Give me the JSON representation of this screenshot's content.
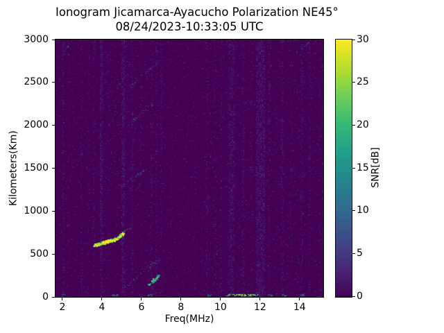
{
  "chart_data": {
    "type": "heatmap",
    "title": "Ionogram Jicamarca-Ayacucho Polarization NE45°",
    "subtitle": "08/24/2023-10:33:05 UTC",
    "xlabel": "Freq(MHz)",
    "ylabel": "Kilometers(Km)",
    "xlim": [
      1.65,
      15.2
    ],
    "ylim": [
      0,
      3000
    ],
    "x_ticks": [
      2,
      4,
      6,
      8,
      10,
      12,
      14
    ],
    "y_ticks": [
      0,
      500,
      1000,
      1500,
      2000,
      2500,
      3000
    ],
    "seed": 42,
    "background_snr": 0,
    "colorbar": {
      "label": "SNR[dB]",
      "min": 0,
      "max": 30,
      "ticks": [
        0,
        5,
        10,
        15,
        20,
        25,
        30
      ],
      "colormap": "viridis",
      "stops": [
        "#440154",
        "#482878",
        "#3e4989",
        "#31688e",
        "#26828e",
        "#1f9e89",
        "#35b779",
        "#6ece58",
        "#b5de2b",
        "#fde725"
      ]
    },
    "noise": {
      "base_density": 0.03,
      "base_max_snr": 2.5,
      "speckles": [
        {
          "count": 1100,
          "f": [
            1.65,
            15.2
          ],
          "km": [
            0,
            3000
          ],
          "snr": [
            1,
            8
          ]
        },
        {
          "count": 260,
          "f": [
            9.0,
            15.2
          ],
          "km": [
            0,
            3000
          ],
          "snr": [
            2,
            12
          ]
        },
        {
          "count": 120,
          "f": [
            4.0,
            7.2
          ],
          "km": [
            1200,
            3000
          ],
          "snr": [
            2,
            10
          ]
        }
      ]
    },
    "rfi_bands": [
      {
        "f": 2.02,
        "w": 0.04,
        "d": 0.18,
        "snr": 4
      },
      {
        "f": 2.28,
        "w": 0.03,
        "d": 0.1,
        "snr": 3
      },
      {
        "f": 2.95,
        "w": 0.04,
        "d": 0.14,
        "snr": 4
      },
      {
        "f": 3.3,
        "w": 0.03,
        "d": 0.08,
        "snr": 3
      },
      {
        "f": 3.58,
        "w": 0.04,
        "d": 0.14,
        "snr": 4
      },
      {
        "f": 3.95,
        "w": 0.05,
        "d": 0.28,
        "snr": 5
      },
      {
        "f": 4.3,
        "w": 0.03,
        "d": 0.08,
        "snr": 3
      },
      {
        "f": 5.05,
        "w": 0.07,
        "d": 0.28,
        "snr": 5
      },
      {
        "f": 5.5,
        "w": 0.04,
        "d": 0.15,
        "snr": 4
      },
      {
        "f": 5.95,
        "w": 0.03,
        "d": 0.1,
        "snr": 3
      },
      {
        "f": 6.5,
        "w": 0.04,
        "d": 0.15,
        "snr": 4
      },
      {
        "f": 6.75,
        "w": 0.04,
        "d": 0.15,
        "snr": 4
      },
      {
        "f": 6.98,
        "w": 0.04,
        "d": 0.13,
        "snr": 4
      },
      {
        "f": 7.5,
        "w": 0.03,
        "d": 0.06,
        "snr": 3
      },
      {
        "f": 8.1,
        "w": 0.03,
        "d": 0.06,
        "snr": 3
      },
      {
        "f": 8.7,
        "w": 0.03,
        "d": 0.06,
        "snr": 3
      },
      {
        "f": 9.3,
        "w": 0.04,
        "d": 0.13,
        "snr": 4
      },
      {
        "f": 9.7,
        "w": 0.03,
        "d": 0.08,
        "snr": 3
      },
      {
        "f": 10.0,
        "w": 0.04,
        "d": 0.12,
        "snr": 4
      },
      {
        "f": 10.55,
        "w": 0.13,
        "d": 0.2,
        "snr": 5
      },
      {
        "f": 11.15,
        "w": 0.04,
        "d": 0.13,
        "snr": 4
      },
      {
        "f": 11.55,
        "w": 0.03,
        "d": 0.08,
        "snr": 3
      },
      {
        "f": 12.0,
        "w": 0.2,
        "d": 0.26,
        "snr": 5
      },
      {
        "f": 12.45,
        "w": 0.05,
        "d": 0.15,
        "snr": 4
      },
      {
        "f": 12.8,
        "w": 0.03,
        "d": 0.08,
        "snr": 3
      },
      {
        "f": 13.1,
        "w": 0.05,
        "d": 0.15,
        "snr": 4
      },
      {
        "f": 13.55,
        "w": 0.04,
        "d": 0.13,
        "snr": 4
      },
      {
        "f": 14.1,
        "w": 0.05,
        "d": 0.15,
        "snr": 4
      },
      {
        "f": 14.5,
        "w": 0.05,
        "d": 0.15,
        "snr": 4
      },
      {
        "f": 15.0,
        "w": 0.05,
        "d": 0.1,
        "snr": 3
      }
    ],
    "echo_traces": [
      {
        "name": "f-region-echo",
        "points": [
          [
            3.6,
            600
          ],
          [
            3.95,
            628
          ],
          [
            4.35,
            652
          ],
          [
            4.75,
            680
          ],
          [
            5.1,
            745
          ]
        ],
        "dots": 260,
        "snr": [
          10,
          30
        ],
        "size": 2
      },
      {
        "name": "f-region-echo-peak",
        "points": [
          [
            4.05,
            635
          ],
          [
            4.55,
            662
          ]
        ],
        "dots": 90,
        "snr": [
          22,
          30
        ],
        "size": 2
      },
      {
        "name": "f-echo-upper-tail",
        "points": [
          [
            5.1,
            750
          ],
          [
            5.45,
            800
          ]
        ],
        "dots": 16,
        "snr": [
          7,
          15
        ],
        "size": 1
      },
      {
        "name": "second-hop",
        "points": [
          [
            4.95,
            1295
          ],
          [
            6.3,
            1495
          ]
        ],
        "dots": 28,
        "snr": [
          5,
          13
        ],
        "size": 1
      },
      {
        "name": "third-hop",
        "points": [
          [
            5.1,
            1950
          ],
          [
            6.55,
            2250
          ]
        ],
        "dots": 30,
        "snr": [
          5,
          13
        ],
        "size": 1
      },
      {
        "name": "fourth-hop",
        "points": [
          [
            5.45,
            2450
          ],
          [
            6.85,
            2745
          ]
        ],
        "dots": 26,
        "snr": [
          5,
          12
        ],
        "size": 1
      },
      {
        "name": "upper-left-trace",
        "points": [
          [
            4.78,
            2440
          ],
          [
            5.3,
            2600
          ]
        ],
        "dots": 16,
        "snr": [
          5,
          11
        ],
        "size": 1
      },
      {
        "name": "sporadic-e",
        "points": [
          [
            5.3,
            130
          ],
          [
            6.2,
            320
          ],
          [
            6.95,
            440
          ]
        ],
        "dots": 40,
        "snr": [
          5,
          13
        ],
        "size": 1
      },
      {
        "name": "sporadic-e-bright",
        "points": [
          [
            6.35,
            140
          ],
          [
            6.95,
            265
          ]
        ],
        "dots": 34,
        "snr": [
          10,
          24
        ],
        "size": 2
      },
      {
        "name": "top-left-dots",
        "points": [
          [
            1.98,
            2750
          ],
          [
            2.3,
            2945
          ]
        ],
        "dots": 10,
        "snr": [
          5,
          11
        ],
        "size": 1
      },
      {
        "name": "top-right-dots",
        "points": [
          [
            13.85,
            2840
          ],
          [
            14.55,
            2985
          ]
        ],
        "dots": 14,
        "snr": [
          5,
          12
        ],
        "size": 1
      }
    ],
    "baseline_segments": [
      {
        "f0": 10.15,
        "f1": 11.9,
        "snr": [
          12,
          26
        ]
      },
      {
        "f0": 10.8,
        "f1": 11.25,
        "snr": [
          20,
          30
        ]
      },
      {
        "f0": 9.3,
        "f1": 9.5,
        "snr": [
          8,
          16
        ]
      },
      {
        "f0": 12.4,
        "f1": 12.6,
        "snr": [
          8,
          14
        ]
      },
      {
        "f0": 13.1,
        "f1": 13.3,
        "snr": [
          8,
          14
        ]
      },
      {
        "f0": 4.5,
        "f1": 4.8,
        "snr": [
          8,
          14
        ]
      },
      {
        "f0": 6.3,
        "f1": 6.55,
        "snr": [
          8,
          16
        ]
      },
      {
        "f0": 14.05,
        "f1": 14.25,
        "snr": [
          6,
          12
        ]
      },
      {
        "f0": 2.0,
        "f1": 2.1,
        "snr": [
          6,
          12
        ]
      }
    ]
  }
}
